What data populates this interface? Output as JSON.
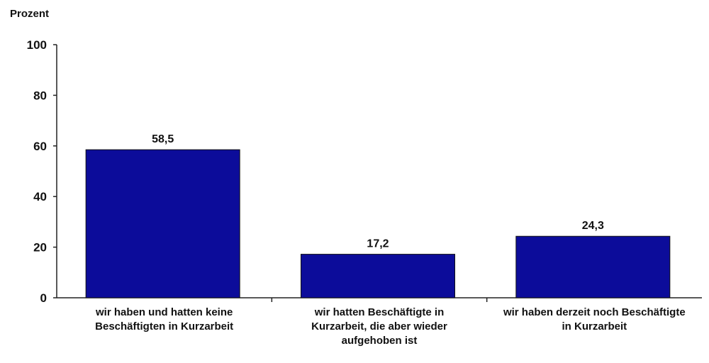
{
  "chart_data": {
    "type": "bar",
    "title": "",
    "ylabel": "Prozent",
    "xlabel": "",
    "ylim": [
      0,
      100
    ],
    "yticks": [
      0,
      20,
      40,
      60,
      80,
      100
    ],
    "grid": false,
    "categories": [
      [
        "wir haben und hatten keine",
        "Beschäftigten in Kurzarbeit"
      ],
      [
        "wir hatten Beschäftigte in",
        "Kurzarbeit, die aber wieder",
        "aufgehoben ist"
      ],
      [
        "wir haben derzeit noch Beschäftigte",
        "in Kurzarbeit"
      ]
    ],
    "values": [
      58.5,
      17.2,
      24.3
    ],
    "value_labels": [
      "58,5",
      "17,2",
      "24,3"
    ],
    "bar_color": "#0c0c9a"
  }
}
